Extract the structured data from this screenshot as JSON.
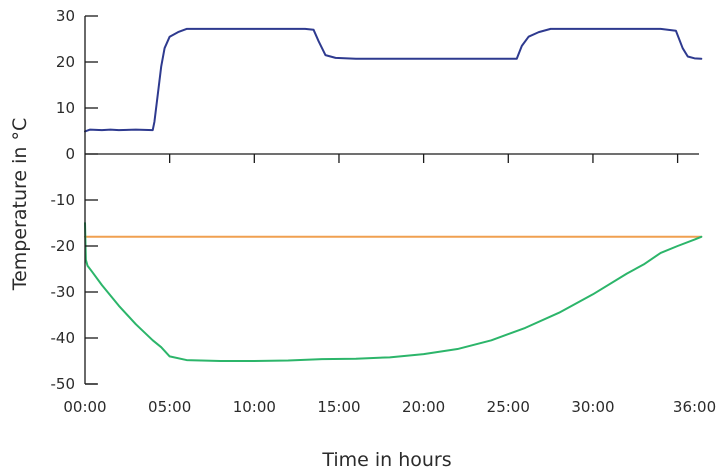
{
  "chart_data": {
    "type": "line",
    "title": "",
    "xlabel": "Time in hours",
    "ylabel": "Temperature in °C",
    "xlim": [
      0,
      36.5
    ],
    "ylim": [
      -50,
      30
    ],
    "x_ticks": [
      0,
      5,
      10,
      15,
      20,
      25,
      30,
      36
    ],
    "x_tick_labels": [
      "00:00",
      "05:00",
      "10:00",
      "15:00",
      "20:00",
      "25:00",
      "30:00",
      "36:00"
    ],
    "x_minor_ticks": [
      5,
      10,
      15,
      20,
      25,
      30,
      35
    ],
    "y_ticks": [
      30,
      20,
      10,
      0,
      -10,
      -20,
      -30,
      -40,
      -50
    ],
    "y_tick_labels": [
      "30",
      "20",
      "10",
      "0",
      "-10",
      "-20",
      "-30",
      "-40",
      "-50"
    ],
    "grid": false,
    "legend": "none",
    "series": [
      {
        "color": "#2e3a8f",
        "x": [
          0,
          0.3,
          1,
          1.5,
          2,
          3,
          4,
          4.1,
          4.3,
          4.5,
          4.7,
          5.0,
          5.5,
          6.0,
          7,
          10,
          13,
          13.5,
          13.8,
          14.2,
          14.8,
          16,
          20,
          25.5,
          25.8,
          26.2,
          26.8,
          27.5,
          30,
          34,
          34.9,
          35.3,
          35.6,
          36,
          36.4
        ],
        "y": [
          4.9,
          5.3,
          5.2,
          5.3,
          5.2,
          5.3,
          5.2,
          7,
          13,
          19,
          23,
          25.5,
          26.5,
          27.2,
          27.2,
          27.2,
          27.2,
          27.0,
          24.5,
          21.5,
          20.9,
          20.7,
          20.7,
          20.7,
          23.5,
          25.5,
          26.5,
          27.2,
          27.2,
          27.2,
          26.8,
          23,
          21.2,
          20.8,
          20.7
        ]
      },
      {
        "color": "#f0a050",
        "x": [
          0,
          36.4
        ],
        "y": [
          -18,
          -18
        ]
      },
      {
        "color": "#2cb56a",
        "x": [
          0,
          0.05,
          0.15,
          0.4,
          1,
          2,
          3,
          4,
          4.5,
          5,
          6,
          8,
          10,
          12,
          14,
          16,
          18,
          20,
          22,
          24,
          26,
          28,
          30,
          32,
          33,
          34,
          35,
          36,
          36.4
        ],
        "y": [
          -15,
          -23,
          -24.3,
          -25.5,
          -28.5,
          -33,
          -37,
          -40.5,
          -42,
          -44,
          -44.8,
          -45,
          -45,
          -44.9,
          -44.6,
          -44.5,
          -44.2,
          -43.5,
          -42.4,
          -40.5,
          -37.8,
          -34.5,
          -30.5,
          -26,
          -24,
          -21.5,
          -20,
          -18.6,
          -18
        ]
      }
    ]
  }
}
